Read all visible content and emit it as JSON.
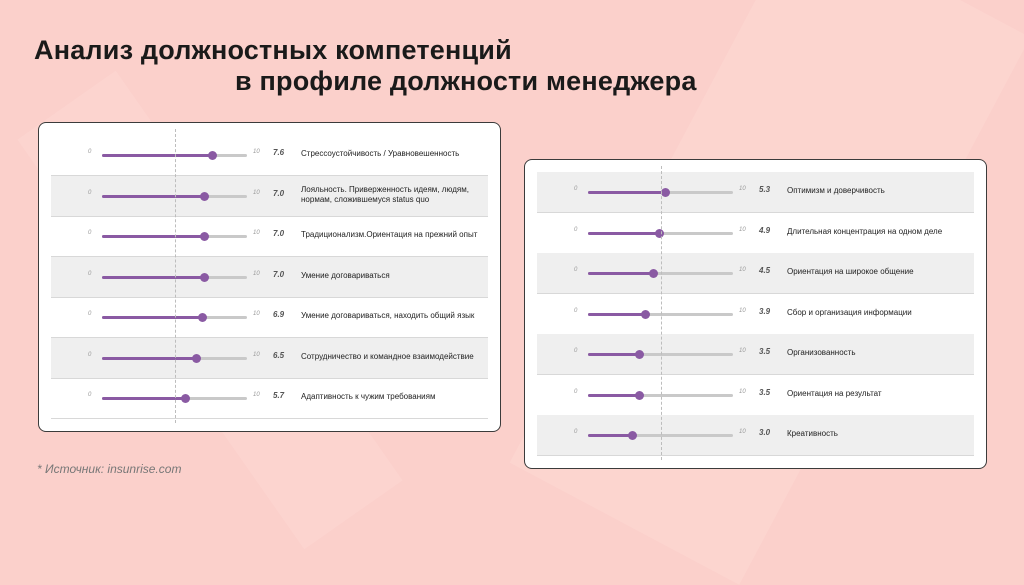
{
  "title": {
    "line1": "Анализ должностных компетенций",
    "line2": "в профиле должности менеджера"
  },
  "source": "* Источник:  insunrise.com",
  "colors": {
    "background": "#fbd0cb",
    "accent": "#8a5aa3",
    "track": "#c9c9c9"
  },
  "chart_data": [
    {
      "type": "bar",
      "min_label": "0",
      "max_label": "10",
      "xlim": [
        0,
        10
      ],
      "items": [
        {
          "label": "Стрессоустойчивость / Уравновешенность",
          "value": 7.6,
          "value_label": "7.6"
        },
        {
          "label": "Лояльность. Приверженность идеям, людям, нормам, сложившемуся status quo",
          "value": 7.0,
          "value_label": "7.0"
        },
        {
          "label": "Традиционализм.Ориентация на прежний опыт",
          "value": 7.0,
          "value_label": "7.0"
        },
        {
          "label": "Умение договариваться",
          "value": 7.0,
          "value_label": "7.0"
        },
        {
          "label": "Умение договариваться, находить общий язык",
          "value": 6.9,
          "value_label": "6.9"
        },
        {
          "label": "Сотрудничество и командное взаимодействие",
          "value": 6.5,
          "value_label": "6.5"
        },
        {
          "label": "Адаптивность к чужим требованиям",
          "value": 5.7,
          "value_label": "5.7"
        }
      ]
    },
    {
      "type": "bar",
      "min_label": "0",
      "max_label": "10",
      "xlim": [
        0,
        10
      ],
      "items": [
        {
          "label": "Оптимизм и доверчивость",
          "value": 5.3,
          "value_label": "5.3"
        },
        {
          "label": "Длительная концентрация на одном деле",
          "value": 4.9,
          "value_label": "4.9"
        },
        {
          "label": "Ориентация на широкое общение",
          "value": 4.5,
          "value_label": "4.5"
        },
        {
          "label": "Сбор и организация информации",
          "value": 3.9,
          "value_label": "3.9"
        },
        {
          "label": "Организованность",
          "value": 3.5,
          "value_label": "3.5"
        },
        {
          "label": "Ориентация на результат",
          "value": 3.5,
          "value_label": "3.5"
        },
        {
          "label": "Креативность",
          "value": 3.0,
          "value_label": "3.0"
        }
      ]
    }
  ]
}
